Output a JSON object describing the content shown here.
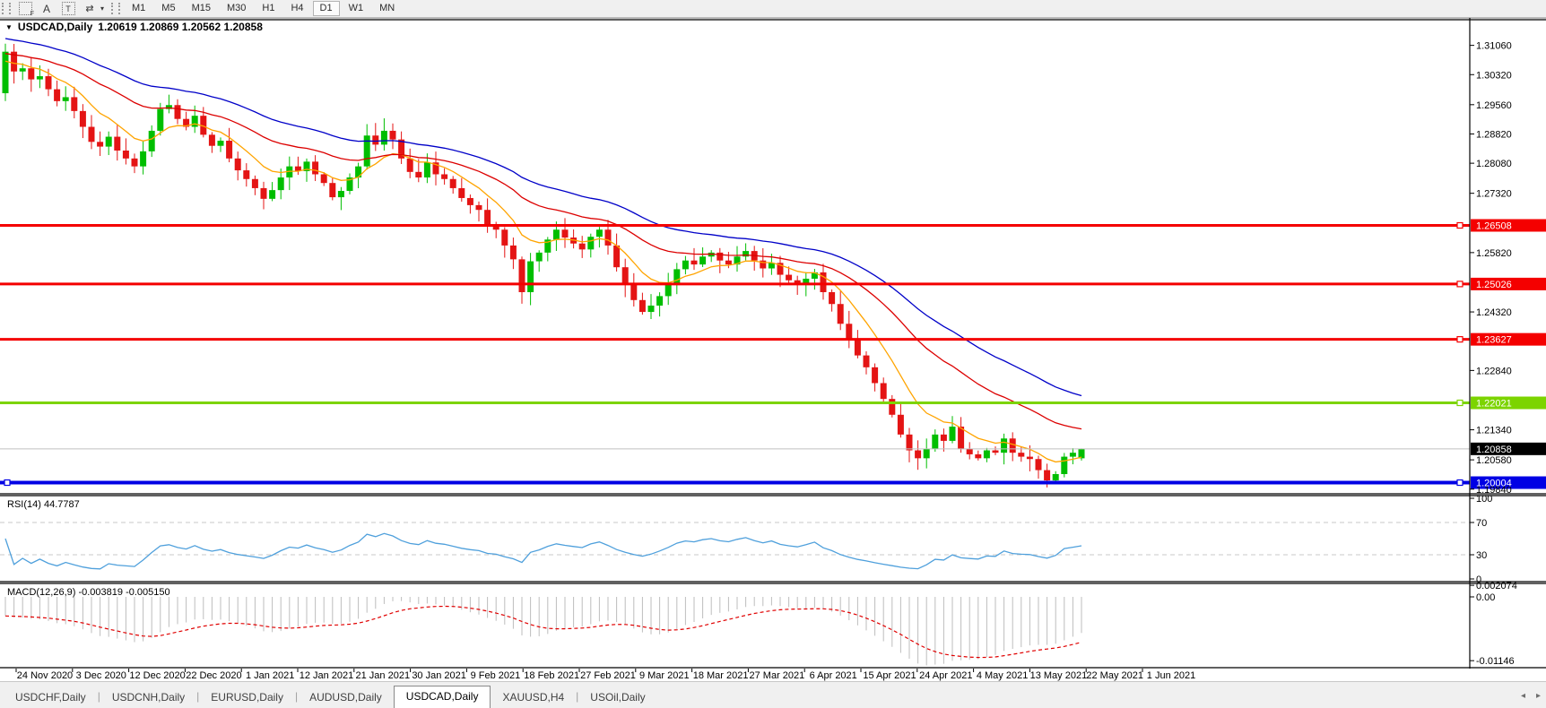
{
  "toolbar": {
    "icons": [
      {
        "name": "template-f-icon",
        "glyph": "F"
      },
      {
        "name": "text-label-icon",
        "glyph": "A"
      },
      {
        "name": "text-tool-icon",
        "glyph": "T"
      },
      {
        "name": "arrow-tools-icon",
        "glyph": "⇄"
      },
      {
        "name": "dropdown-caret-icon",
        "glyph": "▾"
      }
    ],
    "timeframes": [
      "M1",
      "M5",
      "M15",
      "M30",
      "H1",
      "H4",
      "D1",
      "W1",
      "MN"
    ],
    "active_timeframe": "D1"
  },
  "chart": {
    "dropdown_glyph": "▼",
    "symbol": "USDCAD,Daily",
    "open": "1.20619",
    "high": "1.20869",
    "low": "1.20562",
    "close": "1.20858",
    "price_axis_labels": [
      "1.31060",
      "1.30320",
      "1.29560",
      "1.28820",
      "1.28080",
      "1.27320",
      "1.25820",
      "1.24320",
      "1.22840",
      "1.21340",
      "1.20580",
      "1.19840"
    ],
    "current_price": {
      "label": "1.20858",
      "price": 1.20858,
      "line_color": "#c0c0c0",
      "label_bg": "#000000"
    }
  },
  "rsi": {
    "label": "RSI(14) 44.7787",
    "value": "44.7787",
    "color": "#4fa0dc",
    "axis": [
      {
        "text": "100",
        "value": 100,
        "dashed": false
      },
      {
        "text": "70",
        "value": 70,
        "dashed": true
      },
      {
        "text": "30",
        "value": 30,
        "dashed": true
      },
      {
        "text": "0",
        "value": 0,
        "dashed": false
      }
    ]
  },
  "macd": {
    "label": "MACD(12,26,9) -0.003819 -0.005150",
    "main_value": "-0.003819",
    "signal_value": "-0.005150",
    "hist_color": "#bdbdbd",
    "signal_color": "#e00000",
    "axis": [
      {
        "text": "0.002074",
        "value": 0.002074
      },
      {
        "text": "0.00",
        "value": 0
      },
      {
        "text": "-0.01146",
        "value": -0.01146
      }
    ]
  },
  "dates": [
    "24 Nov 2020",
    "3 Dec 2020",
    "12 Dec 2020",
    "22 Dec 2020",
    "1 Jan 2021",
    "12 Jan 2021",
    "21 Jan 2021",
    "30 Jan 2021",
    "9 Feb 2021",
    "18 Feb 2021",
    "27 Feb 2021",
    "9 Mar 2021",
    "18 Mar 2021",
    "27 Mar 2021",
    "6 Apr 2021",
    "15 Apr 2021",
    "24 Apr 2021",
    "4 May 2021",
    "13 May 2021",
    "22 May 2021",
    "1 Jun 2021"
  ],
  "tabs": [
    "USDCHF,Daily",
    "USDCNH,Daily",
    "EURUSD,Daily",
    "AUDUSD,Daily",
    "USDCAD,Daily",
    "XAUUSD,H4",
    "USOil,Daily"
  ],
  "active_tab": "USDCAD,Daily",
  "tab_nav": {
    "left": "◂",
    "right": "▸"
  },
  "chart_data": {
    "type": "candlestick",
    "title": "USDCAD,Daily",
    "ylim": [
      1.19744,
      1.31686
    ],
    "last_candle": {
      "open": 1.20619,
      "high": 1.20869,
      "low": 1.20562,
      "close": 1.20858
    },
    "closes": [
      1.309,
      1.304,
      1.3048,
      1.302,
      1.3028,
      1.2995,
      1.2965,
      1.2975,
      1.294,
      1.29,
      1.2862,
      1.285,
      1.2875,
      1.284,
      1.282,
      1.28,
      1.2838,
      1.289,
      1.2945,
      1.2955,
      1.292,
      1.29,
      1.2928,
      1.288,
      1.2852,
      1.2865,
      1.282,
      1.279,
      1.2768,
      1.2745,
      1.2718,
      1.274,
      1.2772,
      1.28,
      1.2788,
      1.2812,
      1.278,
      1.2758,
      1.2722,
      1.2738,
      1.2772,
      1.28,
      1.2878,
      1.2855,
      1.289,
      1.2868,
      1.282,
      1.2786,
      1.2772,
      1.281,
      1.278,
      1.2768,
      1.2745,
      1.272,
      1.2702,
      1.269,
      1.2652,
      1.264,
      1.26,
      1.2565,
      1.2482,
      1.256,
      1.2582,
      1.2615,
      1.264,
      1.262,
      1.2605,
      1.259,
      1.2622,
      1.264,
      1.26,
      1.2545,
      1.2502,
      1.2462,
      1.2432,
      1.2448,
      1.2472,
      1.2502,
      1.254,
      1.2562,
      1.2552,
      1.2572,
      1.2582,
      1.2562,
      1.2552,
      1.2572,
      1.2586,
      1.2562,
      1.2542,
      1.2556,
      1.2526,
      1.2512,
      1.2502,
      1.2516,
      1.2532,
      1.2482,
      1.2452,
      1.2402,
      1.2362,
      1.2322,
      1.2292,
      1.2252,
      1.2212,
      1.2172,
      1.2122,
      1.2082,
      1.2062,
      1.2086,
      1.2122,
      1.2106,
      1.2142,
      1.2086,
      1.2072,
      1.2062,
      1.2082,
      1.2076,
      1.2112,
      1.2076,
      1.2066,
      1.206,
      1.2032,
      1.2006,
      1.2022,
      1.2066,
      1.2076,
      1.20858
    ],
    "up_color": "#00be00",
    "down_color": "#e41414",
    "moving_averages": [
      {
        "name": "fast-ma",
        "period": 9,
        "seed": 1.306,
        "color": "#ffa400"
      },
      {
        "name": "mid-ma",
        "period": 26,
        "seed": 1.3085,
        "color": "#dc0000"
      },
      {
        "name": "slow-ma",
        "period": 42,
        "seed": 1.3125,
        "color": "#0000c8"
      }
    ],
    "hlines": [
      {
        "price": 1.26508,
        "label": "1.26508",
        "color": "#f40000",
        "width": 3,
        "handles": [
          "right"
        ]
      },
      {
        "price": 1.25026,
        "label": "1.25026",
        "color": "#f40000",
        "width": 3,
        "handles": [
          "right"
        ]
      },
      {
        "price": 1.23627,
        "label": "1.23627",
        "color": "#f40000",
        "width": 3,
        "handles": [
          "right"
        ]
      },
      {
        "price": 1.22021,
        "label": "1.22021",
        "color": "#7cd400",
        "width": 3,
        "handles": [
          "right"
        ]
      },
      {
        "price": 1.20004,
        "label": "1.20004",
        "color": "#0000e4",
        "width": 4,
        "handles": [
          "left",
          "right"
        ]
      }
    ]
  }
}
